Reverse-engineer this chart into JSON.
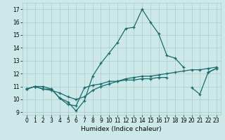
{
  "xlabel": "Humidex (Indice chaleur)",
  "xlim": [
    -0.5,
    23.5
  ],
  "ylim": [
    8.8,
    17.5
  ],
  "xticks": [
    0,
    1,
    2,
    3,
    4,
    5,
    6,
    7,
    8,
    9,
    10,
    11,
    12,
    13,
    14,
    15,
    16,
    17,
    18,
    19,
    20,
    21,
    22,
    23
  ],
  "yticks": [
    9,
    10,
    11,
    12,
    13,
    14,
    15,
    16,
    17
  ],
  "bg_color": "#cce8e8",
  "grid_color": "#aacccc",
  "line_color": "#1a6b6b",
  "series": [
    [
      10.8,
      11.0,
      11.0,
      10.8,
      10.1,
      9.8,
      9.1,
      9.9,
      11.8,
      12.8,
      13.6,
      14.4,
      15.5,
      15.6,
      17.0,
      16.0,
      15.1,
      13.4,
      13.2,
      12.5,
      null,
      null,
      12.1,
      12.4
    ],
    [
      10.8,
      11.0,
      10.8,
      10.8,
      10.1,
      9.6,
      9.5,
      10.9,
      11.1,
      11.2,
      11.4,
      11.4,
      11.5,
      11.5,
      11.6,
      11.6,
      11.7,
      11.7,
      null,
      null,
      null,
      null,
      null,
      null
    ],
    [
      10.8,
      11.0,
      10.8,
      10.7,
      10.5,
      10.2,
      10.0,
      10.2,
      10.7,
      11.0,
      11.2,
      11.4,
      11.6,
      11.7,
      11.8,
      11.8,
      11.9,
      12.0,
      12.1,
      12.2,
      12.3,
      12.3,
      12.4,
      12.5
    ],
    [
      10.8,
      null,
      null,
      null,
      null,
      null,
      null,
      null,
      null,
      null,
      null,
      null,
      null,
      null,
      null,
      null,
      null,
      null,
      null,
      null,
      10.9,
      10.4,
      12.1,
      12.4
    ]
  ]
}
